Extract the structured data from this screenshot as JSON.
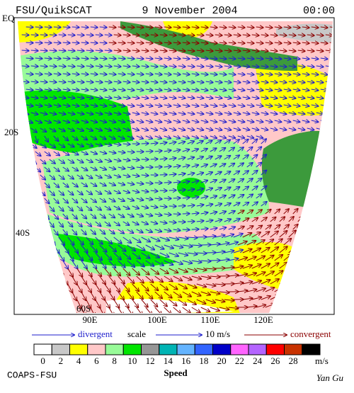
{
  "header": {
    "left": "FSU/QuikSCAT",
    "date": "9 November 2004",
    "time": "00:00"
  },
  "map": {
    "lat_labels": [
      "EQ",
      "20S",
      "40S",
      "60S"
    ],
    "lon_labels": [
      "90E",
      "100E",
      "110E",
      "120E"
    ]
  },
  "legend": {
    "divergent": "divergent",
    "scale": "scale",
    "scale_value": "10 m/s",
    "convergent": "convergent"
  },
  "colorbar": {
    "labels": [
      0,
      2,
      4,
      6,
      8,
      10,
      12,
      14,
      16,
      18,
      20,
      22,
      24,
      26,
      28
    ],
    "colors": [
      "#ffffff",
      "#c8c8c8",
      "#ffff00",
      "#ffc8c8",
      "#98fb98",
      "#00e600",
      "#969696",
      "#00b4b4",
      "#64b4ff",
      "#3264ff",
      "#0000c8",
      "#ff64ff",
      "#b464ff",
      "#ff0000",
      "#c83200",
      "#000000"
    ],
    "unit": "m/s",
    "title": "Speed"
  },
  "footer": {
    "left": "COAPS-FSU",
    "right": "Yan Gu"
  }
}
